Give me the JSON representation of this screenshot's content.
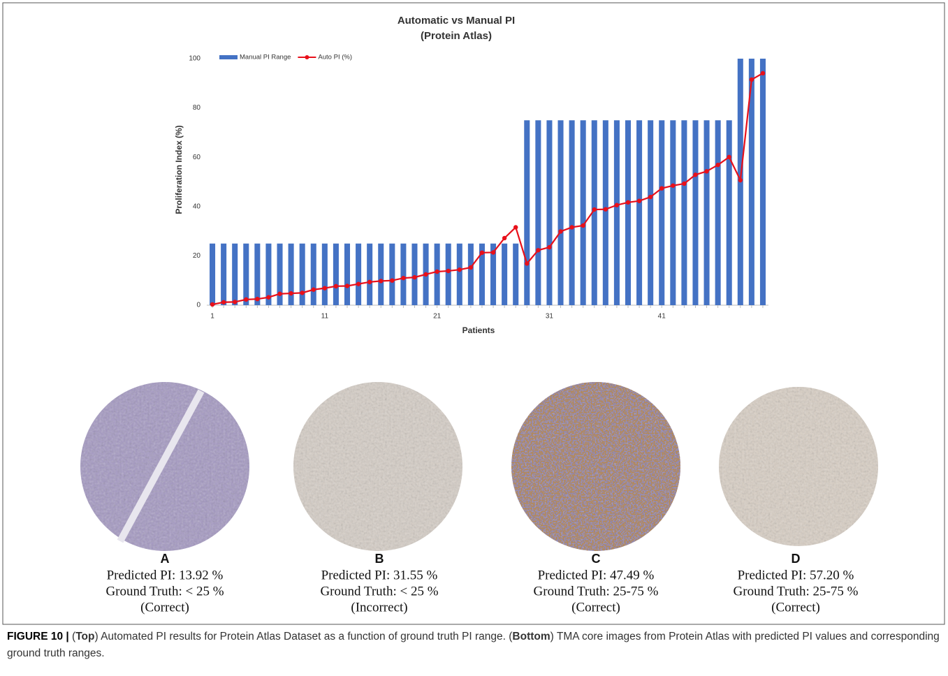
{
  "chart_data": {
    "type": "bar",
    "title": [
      "Automatic vs Manual PI",
      "(Protein Atlas)"
    ],
    "xlabel": "Patients",
    "ylabel": "Proliferation Index (%)",
    "x": [
      1,
      2,
      3,
      4,
      5,
      6,
      7,
      8,
      9,
      10,
      11,
      12,
      13,
      14,
      15,
      16,
      17,
      18,
      19,
      20,
      21,
      22,
      23,
      24,
      25,
      26,
      27,
      28,
      29,
      30,
      31,
      32,
      33,
      34,
      35,
      36,
      37,
      38,
      39,
      40,
      41,
      42,
      43,
      44,
      45,
      46,
      47,
      48,
      49,
      50
    ],
    "series": [
      {
        "name": "Manual PI Range",
        "type": "bar",
        "color": "#4472c4",
        "values": [
          25,
          25,
          25,
          25,
          25,
          25,
          25,
          25,
          25,
          25,
          25,
          25,
          25,
          25,
          25,
          25,
          25,
          25,
          25,
          25,
          25,
          25,
          25,
          25,
          25,
          25,
          25,
          25,
          75,
          75,
          75,
          75,
          75,
          75,
          75,
          75,
          75,
          75,
          75,
          75,
          75,
          75,
          75,
          75,
          75,
          75,
          75,
          100,
          100,
          100
        ]
      },
      {
        "name": "Auto PI (%)",
        "type": "line",
        "color": "#e8101a",
        "values": [
          0.3,
          1.2,
          1.3,
          2.3,
          2.5,
          3.2,
          4.6,
          4.8,
          5,
          6.3,
          6.9,
          7.7,
          7.8,
          8.6,
          9.4,
          9.8,
          10,
          11,
          11.3,
          12.5,
          13.6,
          13.9,
          14.4,
          15.3,
          21.3,
          21.4,
          27.2,
          31.6,
          16.9,
          22.3,
          23.5,
          29.9,
          31.6,
          32.3,
          38.8,
          38.9,
          40.6,
          41.7,
          42.3,
          43.9,
          47.4,
          48.5,
          49.3,
          52.9,
          54.3,
          56.9,
          60.1,
          50.7,
          91.5,
          94.1
        ]
      }
    ],
    "xlim": [
      0.5,
      50.5
    ],
    "xticks": [
      1,
      11,
      21,
      31,
      41
    ],
    "ylim": [
      0,
      100
    ],
    "yticks": [
      0,
      20,
      40,
      60,
      80,
      100
    ],
    "legend": "top-left"
  },
  "panels": [
    {
      "letter": "A",
      "predicted": "Predicted PI: 13.92 %",
      "truth": "Ground Truth: < 25 %",
      "verdict": "(Correct)"
    },
    {
      "letter": "B",
      "predicted": "Predicted PI: 31.55 %",
      "truth": "Ground Truth: < 25 %",
      "verdict": "(Incorrect)"
    },
    {
      "letter": "C",
      "predicted": "Predicted PI: 47.49 %",
      "truth": "Ground Truth: 25-75 %",
      "verdict": "(Correct)"
    },
    {
      "letter": "D",
      "predicted": "Predicted PI: 57.20 %",
      "truth": "Ground Truth: 25-75 %",
      "verdict": "(Correct)"
    }
  ],
  "caption": [
    {
      "text": "FIGURE 10 |",
      "bold": true
    },
    {
      "text": " (",
      "bold": false
    },
    {
      "text": "Top",
      "bold": true
    },
    {
      "text": ") Automated PI results for Protein Atlas Dataset as a function of ground truth PI range. (",
      "bold": false
    },
    {
      "text": "Bottom",
      "bold": true
    },
    {
      "text": ") TMA core images from Protein Atlas with predicted PI values and corresponding ground truth ranges.",
      "bold": false
    }
  ]
}
